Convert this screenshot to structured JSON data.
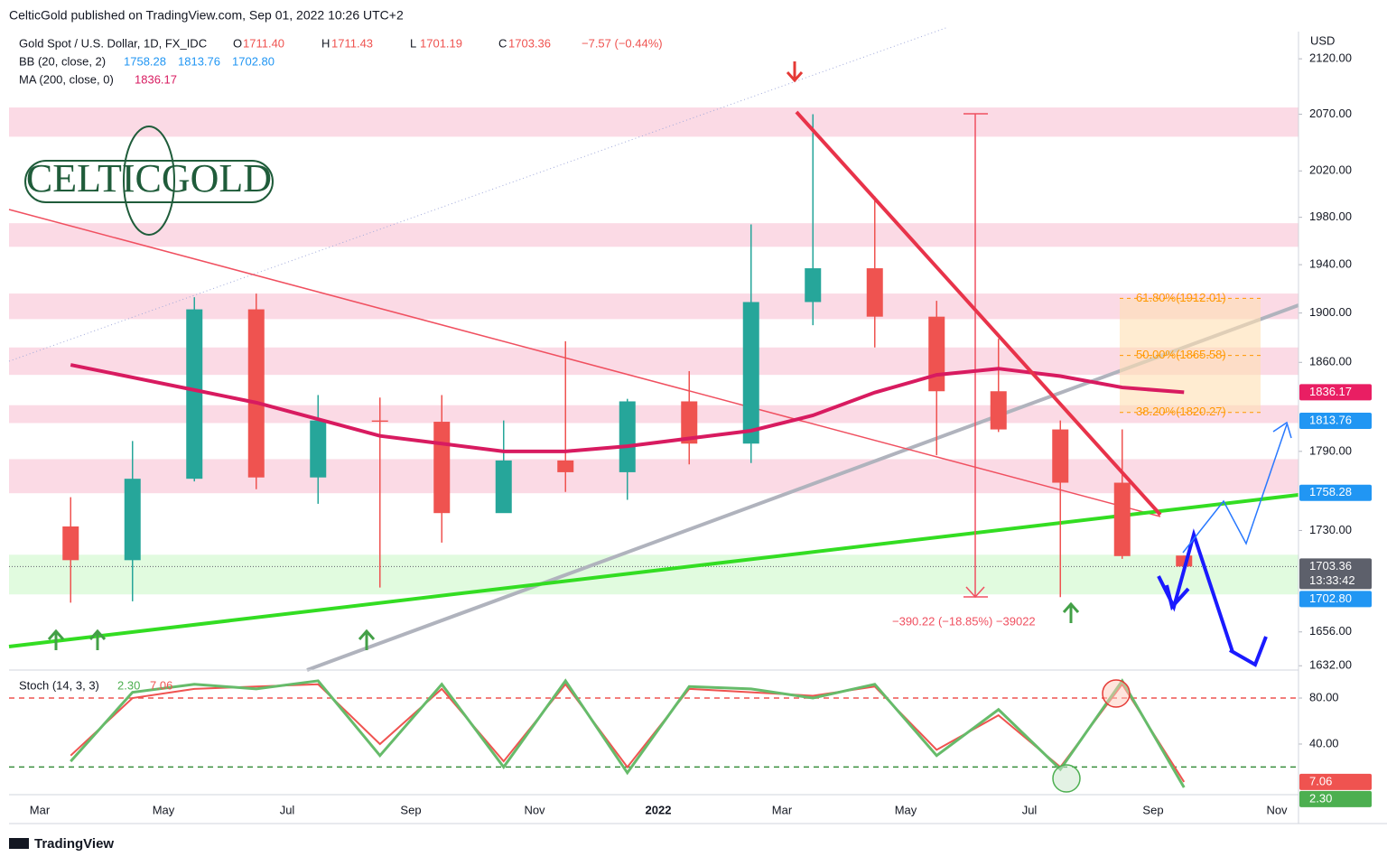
{
  "header": {
    "published": "CelticGold published on TradingView.com, Sep 01, 2022 10:26 UTC+2",
    "logo": "CELTICGOLD"
  },
  "footer": {
    "brand": "TradingView"
  },
  "chart_data": {
    "type": "candlestick",
    "title": "Gold Spot / U.S. Dollar, 1D, FX_IDC",
    "ohlc_legend": [
      {
        "key": "O",
        "label": "1711.40"
      },
      {
        "key": "H",
        "label": "1711.43"
      },
      {
        "key": "L",
        "label": "1701.19"
      },
      {
        "key": "C",
        "label": "1703.36"
      }
    ],
    "change": "−7.57 (−0.44%)",
    "currency": "USD",
    "categories": [
      "Mar",
      null,
      "May",
      null,
      "Jul",
      null,
      "Sep",
      null,
      "Nov",
      null,
      "2022",
      null,
      "Mar",
      null,
      "May",
      null,
      "Jul",
      null,
      "Sep",
      null,
      "Nov"
    ],
    "open": [
      1733,
      1708,
      1769,
      1903,
      1770,
      1814,
      1813,
      1743,
      1783,
      1774,
      1829,
      1796,
      1909,
      1937,
      1897,
      1837,
      1807,
      1766,
      1711.4,
      null,
      null
    ],
    "high": [
      1755,
      1798,
      1913,
      1916,
      1834,
      1832,
      1834,
      1814,
      1877,
      1831,
      1853,
      1974,
      2070,
      1998,
      1910,
      1879,
      1814,
      1807,
      1711.43,
      null,
      null
    ],
    "low": [
      1677,
      1678,
      1767,
      1761,
      1750,
      1688,
      1721,
      1746,
      1759,
      1753,
      1780,
      1781,
      1890,
      1872,
      1787,
      1805,
      1681,
      1709,
      1701.19,
      null,
      null
    ],
    "close": [
      1708,
      1769,
      1903,
      1770,
      1814,
      1813,
      1743,
      1783,
      1774,
      1829,
      1796,
      1909,
      1937,
      1897,
      1837,
      1807,
      1766,
      1711,
      1703.36,
      null,
      null
    ],
    "up_color": "#26a69a",
    "down_color": "#ef5350",
    "log_scale": true,
    "ylim": [
      1629,
      2145
    ],
    "yticks": [
      {
        "value": 2120,
        "label": "2120.00"
      },
      {
        "value": 2070,
        "label": "2070.00"
      },
      {
        "value": 2020,
        "label": "2020.00"
      },
      {
        "value": 1980,
        "label": "1980.00"
      },
      {
        "value": 1940,
        "label": "1940.00"
      },
      {
        "value": 1900,
        "label": "1900.00"
      },
      {
        "value": 1860,
        "label": "1860.00"
      },
      {
        "value": 1790,
        "label": "1790.00"
      },
      {
        "value": 1730,
        "label": "1730.00"
      },
      {
        "value": 1656,
        "label": "1656.00"
      },
      {
        "value": 1632,
        "label": "1632.00"
      }
    ],
    "ma": {
      "name": "MA (200, close, 0)",
      "color": "#d81b60",
      "values": [
        1858,
        1848,
        1838,
        1828,
        1815,
        1802,
        1796,
        1790,
        1790,
        1794,
        1800,
        1806,
        1818,
        1836,
        1850,
        1855,
        1849,
        1840,
        1836.17,
        null,
        null
      ]
    },
    "bb_name": "BB (20, close, 2)",
    "price_tags": [
      {
        "value": 1836.17,
        "label": "1836.17",
        "color": "#e91e63"
      },
      {
        "value": 1813.76,
        "label": "1813.76",
        "color": "#2196f3"
      },
      {
        "value": 1758.28,
        "label": "1758.28",
        "color": "#2196f3"
      },
      {
        "value": 1703.36,
        "label": "1703.36",
        "color": "#5d606b",
        "time": "13:33:42"
      },
      {
        "value": 1702.8,
        "label": "1702.80",
        "color": "#2196f3"
      }
    ],
    "zones": [
      {
        "low": 2050,
        "high": 2076,
        "color": "#f8bbd0"
      },
      {
        "low": 1955,
        "high": 1975,
        "color": "#f8bbd0"
      },
      {
        "low": 1895,
        "high": 1916,
        "color": "#f8bbd0"
      },
      {
        "low": 1850,
        "high": 1872,
        "color": "#f8bbd0"
      },
      {
        "low": 1812,
        "high": 1826,
        "color": "#f8bbd0"
      },
      {
        "low": 1758,
        "high": 1784,
        "color": "#f8bbd0"
      },
      {
        "low": 1683,
        "high": 1712,
        "color": "#c8f7c5"
      }
    ],
    "fib": [
      {
        "value": 1912.01,
        "label": "61.80%(1912.01)"
      },
      {
        "value": 1865.58,
        "label": "50.00%(1865.58)"
      },
      {
        "value": 1820.27,
        "label": "38.20%(1820.27)"
      }
    ],
    "measure": "−390.22 (−18.85%) −39022",
    "stoch": {
      "name": "Stoch (14, 3, 3)",
      "ylim": [
        -4,
        102
      ],
      "yticks": [
        {
          "value": 80,
          "label": "80.00"
        },
        {
          "value": 40,
          "label": "40.00"
        }
      ],
      "bands": [
        {
          "value": 80,
          "color": "#ef5350"
        },
        {
          "value": 20,
          "color": "#388e3c"
        }
      ],
      "k": {
        "color": "#66bb6a",
        "values": [
          25,
          85,
          92,
          88,
          95,
          30,
          92,
          20,
          95,
          15,
          90,
          88,
          80,
          92,
          30,
          70,
          18,
          95,
          2.3,
          null,
          null
        ]
      },
      "d": {
        "color": "#ef5350",
        "values": [
          30,
          80,
          88,
          90,
          92,
          40,
          88,
          25,
          92,
          20,
          88,
          85,
          82,
          90,
          35,
          65,
          20,
          92,
          7.06,
          null,
          null
        ]
      },
      "tags": [
        {
          "value": 7.06,
          "label": "7.06",
          "color": "#ef5350"
        },
        {
          "value": 2.3,
          "label": "2.30",
          "color": "#4caf50"
        }
      ]
    }
  }
}
